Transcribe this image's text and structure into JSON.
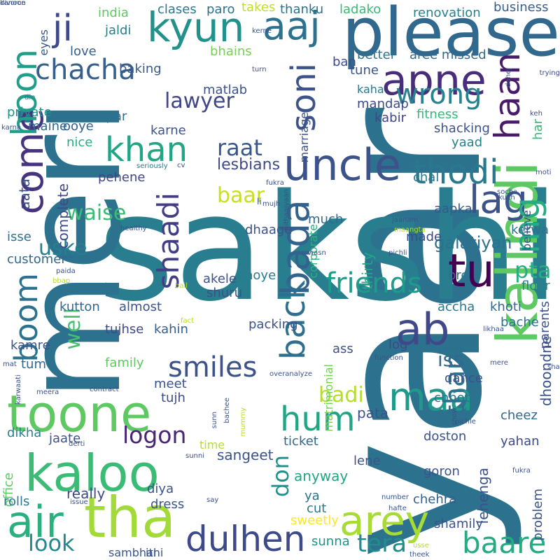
{
  "word_cloud": {
    "words": [
      {
        "text": "yaar",
        "color": "#2c728e",
        "vertical": true
      },
      {
        "text": "sakshi",
        "color": "#287d8e",
        "vertical": false
      },
      {
        "text": "meri",
        "color": "#2c718e",
        "vertical": true
      },
      {
        "text": "please",
        "color": "#31688e",
        "vertical": false
      },
      {
        "text": "kalindi",
        "color": "#5ec962",
        "vertical": true
      },
      {
        "text": "toone",
        "color": "#5ec962",
        "vertical": false
      },
      {
        "text": "kaloo",
        "color": "#3bbb75",
        "vertical": false
      },
      {
        "text": "tha",
        "color": "#a2da37",
        "vertical": false
      },
      {
        "text": "air",
        "color": "#2ab07f",
        "vertical": false
      },
      {
        "text": "uncle",
        "color": "#3b528b",
        "vertical": false
      },
      {
        "text": "apne",
        "color": "#472d7b",
        "vertical": false
      },
      {
        "text": "come",
        "color": "#46337e",
        "vertical": true
      },
      {
        "text": "hoon",
        "color": "#1f9e89",
        "vertical": true
      },
      {
        "text": "kyun",
        "color": "#21918c",
        "vertical": false
      },
      {
        "text": "aaj",
        "color": "#2c718e",
        "vertical": false
      },
      {
        "text": "ji",
        "color": "#3e4a89",
        "vertical": false
      },
      {
        "text": "chacha",
        "color": "#355f8d",
        "vertical": false
      },
      {
        "text": "haan",
        "color": "#481a6c",
        "vertical": true
      },
      {
        "text": "soni",
        "color": "#3b528b",
        "vertical": true
      },
      {
        "text": "wrong",
        "color": "#26828e",
        "vertical": false
      },
      {
        "text": "khan",
        "color": "#21a585",
        "vertical": false
      },
      {
        "text": "thodi",
        "color": "#2a788e",
        "vertical": false
      },
      {
        "text": "lag",
        "color": "#3b528b",
        "vertical": false
      },
      {
        "text": "mg",
        "color": "#25ac82",
        "vertical": true
      },
      {
        "text": "bada",
        "color": "#33638d",
        "vertical": true
      },
      {
        "text": "back",
        "color": "#2e6e8e",
        "vertical": true
      },
      {
        "text": "shaadi",
        "color": "#433d84",
        "vertical": true
      },
      {
        "text": "boom",
        "color": "#2c728e",
        "vertical": true
      },
      {
        "text": "lawyer",
        "color": "#404688",
        "vertical": false
      },
      {
        "text": "raat",
        "color": "#38588c",
        "vertical": false
      },
      {
        "text": "tu",
        "color": "#440154",
        "vertical": false
      },
      {
        "text": "ab",
        "color": "#3f4889",
        "vertical": false
      },
      {
        "text": "pta",
        "color": "#27ad81",
        "vertical": false
      },
      {
        "text": "friends",
        "color": "#1e9c89",
        "vertical": false
      },
      {
        "text": "smiles",
        "color": "#3b528b",
        "vertical": false
      },
      {
        "text": "hum",
        "color": "#21a685",
        "vertical": false
      },
      {
        "text": "maa",
        "color": "#1f9a8a",
        "vertical": false
      },
      {
        "text": "thank",
        "color": "#2d708e",
        "vertical": true
      },
      {
        "text": "arey",
        "color": "#a8db34",
        "vertical": false
      },
      {
        "text": "dulhen",
        "color": "#3e4989",
        "vertical": false
      },
      {
        "text": "baare",
        "color": "#25ab82",
        "vertical": false
      },
      {
        "text": "tera",
        "color": "#228c8d",
        "vertical": false
      },
      {
        "text": "logon",
        "color": "#482475",
        "vertical": false
      },
      {
        "text": "look",
        "color": "#23898e",
        "vertical": false
      },
      {
        "text": "waise",
        "color": "#3bbb75",
        "vertical": false
      },
      {
        "text": "uske",
        "color": "#277f8e",
        "vertical": false
      },
      {
        "text": "baar",
        "color": "#c8e020",
        "vertical": false
      },
      {
        "text": "well",
        "color": "#46c06f",
        "vertical": true
      },
      {
        "text": "don",
        "color": "#21918c",
        "vertical": true
      },
      {
        "text": "iss",
        "color": "#31688e",
        "vertical": false
      },
      {
        "text": "badi",
        "color": "#b5de2b",
        "vertical": false
      },
      {
        "text": "aata",
        "color": "#3b528b",
        "vertical": true
      },
      {
        "text": "galatiyan",
        "color": "#2c718e",
        "vertical": false
      },
      {
        "text": "lesbians",
        "color": "#3e4989",
        "vertical": false
      },
      {
        "text": "renovation",
        "color": "#25838e",
        "vertical": false
      },
      {
        "text": "business",
        "color": "#355f8d",
        "vertical": false
      },
      {
        "text": "clases",
        "color": "#2a778e",
        "vertical": false
      },
      {
        "text": "takes",
        "color": "#c2df23",
        "vertical": false
      },
      {
        "text": "thanku",
        "color": "#2d718e",
        "vertical": false
      },
      {
        "text": "ladako",
        "color": "#3aba76",
        "vertical": false
      },
      {
        "text": "paro",
        "color": "#2c718e",
        "vertical": false
      },
      {
        "text": "india",
        "color": "#5ec962",
        "vertical": false
      },
      {
        "text": "jaldi",
        "color": "#277e8e",
        "vertical": false
      },
      {
        "text": "love",
        "color": "#355f8d",
        "vertical": false
      },
      {
        "text": "baking",
        "color": "#38588c",
        "vertical": false
      },
      {
        "text": "bhains",
        "color": "#75d054",
        "vertical": false
      },
      {
        "text": "better",
        "color": "#2c728e",
        "vertical": false
      },
      {
        "text": "aree missed",
        "color": "#31688e",
        "vertical": false
      },
      {
        "text": "ban",
        "color": "#3e4a89",
        "vertical": false
      },
      {
        "text": "tune",
        "color": "#3b528b",
        "vertical": false
      },
      {
        "text": "kaha",
        "color": "#2a788e",
        "vertical": false
      },
      {
        "text": "mandap",
        "color": "#3e4989",
        "vertical": false
      },
      {
        "text": "kabir",
        "color": "#414487",
        "vertical": false
      },
      {
        "text": "fitness",
        "color": "#37b878",
        "vertical": false
      },
      {
        "text": "shacking",
        "color": "#3b528b",
        "vertical": false
      },
      {
        "text": "yaad",
        "color": "#26828e",
        "vertical": false
      },
      {
        "text": "matlab",
        "color": "#3b528b",
        "vertical": false
      },
      {
        "text": "private",
        "color": "#20928c",
        "vertical": false
      },
      {
        "text": "maine",
        "color": "#31688e",
        "vertical": false
      },
      {
        "text": "ooye",
        "color": "#355f8d",
        "vertical": false
      },
      {
        "text": "upar",
        "color": "#2c718e",
        "vertical": false
      },
      {
        "text": "nice",
        "color": "#26ad81",
        "vertical": false
      },
      {
        "text": "karne",
        "color": "#3b528b",
        "vertical": false
      },
      {
        "text": "pehene",
        "color": "#414487",
        "vertical": false
      },
      {
        "text": "complete",
        "color": "#3e4a89",
        "vertical": true
      },
      {
        "text": "chal",
        "color": "#2a788e",
        "vertical": false
      },
      {
        "text": "kerwa",
        "color": "#2c718e",
        "vertical": false
      },
      {
        "text": "much",
        "color": "#31688e",
        "vertical": false
      },
      {
        "text": "dhaage",
        "color": "#3b528b",
        "vertical": false
      },
      {
        "text": "aapka",
        "color": "#38588c",
        "vertical": false
      },
      {
        "text": "made",
        "color": "#3e4989",
        "vertical": false
      },
      {
        "text": "thirty",
        "color": "#22a785",
        "vertical": true
      },
      {
        "text": "bro",
        "color": "#2c718e",
        "vertical": false
      },
      {
        "text": "customer",
        "color": "#31688e",
        "vertical": false
      },
      {
        "text": "isse",
        "color": "#2c728e",
        "vertical": false
      },
      {
        "text": "akele",
        "color": "#3b528b",
        "vertical": false
      },
      {
        "text": "hoye",
        "color": "#287d8e",
        "vertical": false
      },
      {
        "text": "shuru",
        "color": "#3b528b",
        "vertical": false
      },
      {
        "text": "floor",
        "color": "#26828e",
        "vertical": false
      },
      {
        "text": "accha",
        "color": "#2a788e",
        "vertical": false
      },
      {
        "text": "khoti",
        "color": "#31688e",
        "vertical": false
      },
      {
        "text": "bache",
        "color": "#2c718e",
        "vertical": false
      },
      {
        "text": "kutton",
        "color": "#31688e",
        "vertical": false
      },
      {
        "text": "almost",
        "color": "#3b528b",
        "vertical": false
      },
      {
        "text": "tujhse",
        "color": "#3e4989",
        "vertical": false
      },
      {
        "text": "kahin",
        "color": "#355f8d",
        "vertical": false
      },
      {
        "text": "packing",
        "color": "#3b528b",
        "vertical": false
      },
      {
        "text": "kamre",
        "color": "#3b528b",
        "vertical": false
      },
      {
        "text": "family",
        "color": "#5ec962",
        "vertical": false
      },
      {
        "text": "tum",
        "color": "#31688e",
        "vertical": false
      },
      {
        "text": "meet",
        "color": "#3b528b",
        "vertical": false
      },
      {
        "text": "tujh",
        "color": "#3e4989",
        "vertical": false
      },
      {
        "text": "log",
        "color": "#3e4989",
        "vertical": false
      },
      {
        "text": "ass",
        "color": "#3b528b",
        "vertical": false
      },
      {
        "text": "dance",
        "color": "#3b528b",
        "vertical": false
      },
      {
        "text": "parents",
        "color": "#3b528b",
        "vertical": true
      },
      {
        "text": "cheez",
        "color": "#31688e",
        "vertical": false
      },
      {
        "text": "chhote",
        "color": "#2c718e",
        "vertical": false
      },
      {
        "text": "dhoondne",
        "color": "#3b528b",
        "vertical": true
      },
      {
        "text": "pata",
        "color": "#3b528b",
        "vertical": false
      },
      {
        "text": "doston",
        "color": "#3b528b",
        "vertical": false
      },
      {
        "text": "yahan",
        "color": "#3e4989",
        "vertical": false
      },
      {
        "text": "ticket",
        "color": "#31688e",
        "vertical": false
      },
      {
        "text": "jaate",
        "color": "#3b528b",
        "vertical": false
      },
      {
        "text": "sangeet",
        "color": "#3b528b",
        "vertical": false
      },
      {
        "text": "time",
        "color": "#b5de2b",
        "vertical": false
      },
      {
        "text": "dikha",
        "color": "#26828e",
        "vertical": false
      },
      {
        "text": "office",
        "color": "#5ec962",
        "vertical": true
      },
      {
        "text": "lene",
        "color": "#3b528b",
        "vertical": false
      },
      {
        "text": "anyway",
        "color": "#21a685",
        "vertical": false
      },
      {
        "text": "goron",
        "color": "#3b528b",
        "vertical": false
      },
      {
        "text": "lehenga",
        "color": "#3b528b",
        "vertical": true
      },
      {
        "text": "really",
        "color": "#3e4989",
        "vertical": false
      },
      {
        "text": "diya",
        "color": "#3b528b",
        "vertical": false
      },
      {
        "text": "ya",
        "color": "#2c718e",
        "vertical": false
      },
      {
        "text": "cut",
        "color": "#2a788e",
        "vertical": false
      },
      {
        "text": "chehra",
        "color": "#355f8d",
        "vertical": false
      },
      {
        "text": "problem",
        "color": "#3b528b",
        "vertical": true
      },
      {
        "text": "rolls",
        "color": "#2a788e",
        "vertical": false
      },
      {
        "text": "dress",
        "color": "#3b528b",
        "vertical": false
      },
      {
        "text": "sweetly",
        "color": "#fde725",
        "vertical": false
      },
      {
        "text": "shamily",
        "color": "#3b528b",
        "vertical": false
      },
      {
        "text": "sunna",
        "color": "#20928c",
        "vertical": false
      },
      {
        "text": "sambhal",
        "color": "#3b528b",
        "vertical": false
      },
      {
        "text": "itni",
        "color": "#3b528b",
        "vertical": false
      },
      {
        "text": "eyes",
        "color": "#38588c",
        "vertical": true
      },
      {
        "text": "har",
        "color": "#37b878",
        "vertical": true
      },
      {
        "text": "believe",
        "color": "#3b528b",
        "vertical": true
      },
      {
        "text": "corporate",
        "color": "#2db27d",
        "vertical": true
      },
      {
        "text": "matrimonial",
        "color": "#75d054",
        "vertical": true
      },
      {
        "text": "marriage",
        "color": "#3b528b",
        "vertical": true
      },
      {
        "text": "li",
        "color": "#3b528b",
        "vertical": false
      },
      {
        "text": "kerne",
        "color": "#3b528b",
        "vertical": false
      },
      {
        "text": "turn",
        "color": "#3b528b",
        "vertical": false
      },
      {
        "text": "din",
        "color": "#26828e",
        "vertical": false
      },
      {
        "text": "bail",
        "color": "#b5de2b",
        "vertical": false
      },
      {
        "text": "karna",
        "color": "#3b528b",
        "vertical": false
      },
      {
        "text": "trying",
        "color": "#3e4989",
        "vertical": false
      },
      {
        "text": "dahej",
        "color": "#3b528b",
        "vertical": true
      },
      {
        "text": "keh",
        "color": "#3e4989",
        "vertical": false
      },
      {
        "text": "kuch",
        "color": "#3b528b",
        "vertical": false
      },
      {
        "text": "moti",
        "color": "#3b528b",
        "vertical": false
      },
      {
        "text": "socha",
        "color": "#3b528b",
        "vertical": false
      },
      {
        "text": "seriously",
        "color": "#2a788e",
        "vertical": false
      },
      {
        "text": "cv",
        "color": "#3b528b",
        "vertical": false
      },
      {
        "text": "fukra",
        "color": "#3b528b",
        "vertical": false
      },
      {
        "text": "mujh",
        "color": "#3b528b",
        "vertical": false
      },
      {
        "text": "jaanam",
        "color": "#3b528b",
        "vertical": false
      },
      {
        "text": "maangta",
        "color": "#b5de2b",
        "vertical": false
      },
      {
        "text": "healthy",
        "color": "#3b528b",
        "vertical": false
      },
      {
        "text": "wasn",
        "color": "#3b528b",
        "vertical": false
      },
      {
        "text": "pichli",
        "color": "#3b528b",
        "vertical": false
      },
      {
        "text": "paida",
        "color": "#3b528b",
        "vertical": false
      },
      {
        "text": "bbap",
        "color": "#b5de2b",
        "vertical": false
      },
      {
        "text": "fact",
        "color": "#b5de2b",
        "vertical": false
      },
      {
        "text": "likhaa",
        "color": "#3b528b",
        "vertical": false
      },
      {
        "text": "pichle",
        "color": "#3b528b",
        "vertical": false
      },
      {
        "text": "mat",
        "color": "#3b528b",
        "vertical": false
      },
      {
        "text": "function",
        "color": "#3b528b",
        "vertical": false
      },
      {
        "text": "mere",
        "color": "#3b528b",
        "vertical": false
      },
      {
        "text": "sha",
        "color": "#3b528b",
        "vertical": false
      },
      {
        "text": "karwaati",
        "color": "#3b528b",
        "vertical": true
      },
      {
        "text": "meera",
        "color": "#3b528b",
        "vertical": false
      },
      {
        "text": "contract",
        "color": "#3b528b",
        "vertical": false
      },
      {
        "text": "overanalyze",
        "color": "#3b528b",
        "vertical": false
      },
      {
        "text": "bachee",
        "color": "#3b528b",
        "vertical": true
      },
      {
        "text": "sunn",
        "color": "#3b528b",
        "vertical": true
      },
      {
        "text": "mummy",
        "color": "#b5de2b",
        "vertical": true
      },
      {
        "text": "show",
        "color": "#3b528b",
        "vertical": true
      },
      {
        "text": "derti",
        "color": "#3b528b",
        "vertical": false
      },
      {
        "text": "sunni",
        "color": "#3b528b",
        "vertical": false
      },
      {
        "text": "say",
        "color": "#3b528b",
        "vertical": false
      },
      {
        "text": "mithaaiyaan",
        "color": "#3b528b",
        "vertical": true
      },
      {
        "text": "fukra",
        "color": "#3b528b",
        "vertical": false
      },
      {
        "text": "issue",
        "color": "#3b528b",
        "vertical": false
      },
      {
        "text": "number",
        "color": "#3b528b",
        "vertical": false
      },
      {
        "text": "hafte",
        "color": "#3b528b",
        "vertical": false
      },
      {
        "text": "usse",
        "color": "#b5de2b",
        "vertical": false
      },
      {
        "text": "theek",
        "color": "#3b528b",
        "vertical": false
      },
      {
        "text": "kanoon",
        "color": "#3b528b",
        "vertical": false
      },
      {
        "text": "divorce",
        "color": "#3b528b",
        "vertical": false
      }
    ]
  }
}
